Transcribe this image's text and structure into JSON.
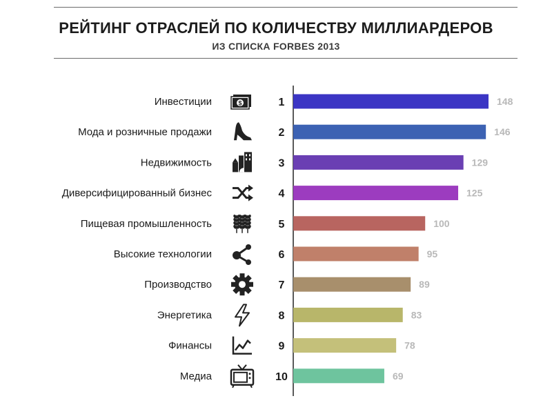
{
  "header": {
    "title": "РЕЙТИНГ ОТРАСЛЕЙ ПО КОЛИЧЕСТВУ МИЛЛИАРДЕРОВ",
    "subtitle": "ИЗ СПИСКА FORBES 2013"
  },
  "chart_data": {
    "type": "bar",
    "orientation": "horizontal",
    "title": "РЕЙТИНГ ОТРАСЛЕЙ ПО КОЛИЧЕСТВУ МИЛЛИАРДЕРОВ",
    "subtitle": "ИЗ СПИСКА FORBES 2013",
    "categories": [
      "Инвестиции",
      "Мода и розничные продажи",
      "Недвижимость",
      "Диверсифицированный бизнес",
      "Пищевая промышленность",
      "Высокие технологии",
      "Производство",
      "Энергетика",
      "Финансы",
      "Медиа"
    ],
    "ranks": [
      "1",
      "2",
      "3",
      "4",
      "5",
      "6",
      "7",
      "8",
      "9",
      "10"
    ],
    "values": [
      148,
      146,
      129,
      125,
      100,
      95,
      89,
      83,
      78,
      69
    ],
    "colors": [
      "#3b35c4",
      "#3c62b3",
      "#6a3fb3",
      "#9c3cbf",
      "#b86560",
      "#c0806a",
      "#a88f6c",
      "#b8b66a",
      "#c4c07a",
      "#6ec49e"
    ],
    "icons": [
      "money-icon",
      "high-heel-icon",
      "city-buildings-icon",
      "shuffle-icon",
      "wheat-icon",
      "share-icon",
      "gear-icon",
      "lightning-icon",
      "chart-icon",
      "tv-icon"
    ],
    "xlim": [
      0,
      148
    ],
    "grid": false,
    "legend": "none"
  }
}
